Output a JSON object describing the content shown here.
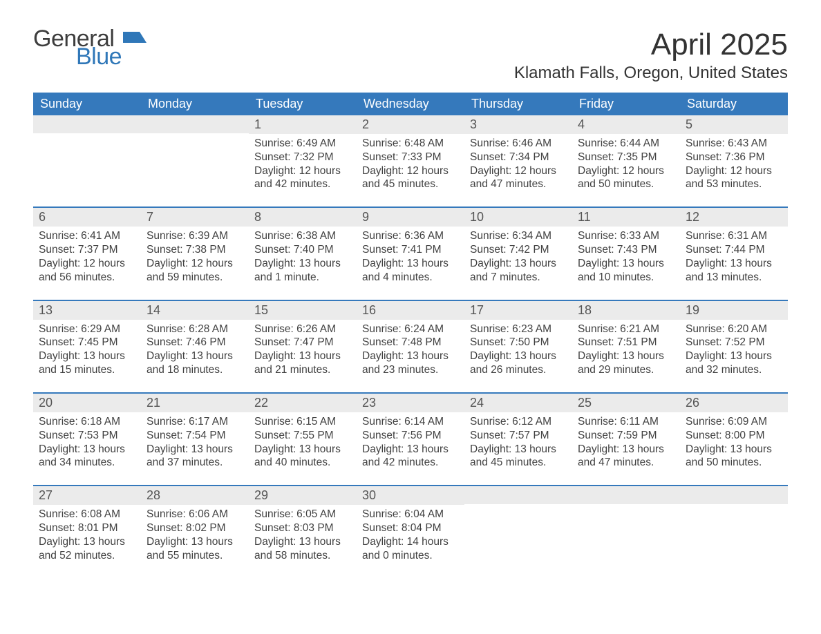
{
  "brand": {
    "line1": "General",
    "line2": "Blue",
    "mark_color": "#2f77b8"
  },
  "title": "April 2025",
  "location": "Klamath Falls, Oregon, United States",
  "colors": {
    "header_bg": "#3579bc",
    "header_text": "#ffffff",
    "daynum_bg": "#ebebeb",
    "week_border": "#3579bc",
    "body_text": "#414141",
    "page_bg": "#ffffff"
  },
  "typography": {
    "title_fontsize": 44,
    "location_fontsize": 24,
    "dow_fontsize": 18,
    "body_fontsize": 15.5
  },
  "days_of_week": [
    "Sunday",
    "Monday",
    "Tuesday",
    "Wednesday",
    "Thursday",
    "Friday",
    "Saturday"
  ],
  "weeks": [
    [
      {
        "n": "",
        "sr": "",
        "ss": "",
        "dl": ""
      },
      {
        "n": "",
        "sr": "",
        "ss": "",
        "dl": ""
      },
      {
        "n": "1",
        "sr": "6:49 AM",
        "ss": "7:32 PM",
        "dl": "12 hours and 42 minutes."
      },
      {
        "n": "2",
        "sr": "6:48 AM",
        "ss": "7:33 PM",
        "dl": "12 hours and 45 minutes."
      },
      {
        "n": "3",
        "sr": "6:46 AM",
        "ss": "7:34 PM",
        "dl": "12 hours and 47 minutes."
      },
      {
        "n": "4",
        "sr": "6:44 AM",
        "ss": "7:35 PM",
        "dl": "12 hours and 50 minutes."
      },
      {
        "n": "5",
        "sr": "6:43 AM",
        "ss": "7:36 PM",
        "dl": "12 hours and 53 minutes."
      }
    ],
    [
      {
        "n": "6",
        "sr": "6:41 AM",
        "ss": "7:37 PM",
        "dl": "12 hours and 56 minutes."
      },
      {
        "n": "7",
        "sr": "6:39 AM",
        "ss": "7:38 PM",
        "dl": "12 hours and 59 minutes."
      },
      {
        "n": "8",
        "sr": "6:38 AM",
        "ss": "7:40 PM",
        "dl": "13 hours and 1 minute."
      },
      {
        "n": "9",
        "sr": "6:36 AM",
        "ss": "7:41 PM",
        "dl": "13 hours and 4 minutes."
      },
      {
        "n": "10",
        "sr": "6:34 AM",
        "ss": "7:42 PM",
        "dl": "13 hours and 7 minutes."
      },
      {
        "n": "11",
        "sr": "6:33 AM",
        "ss": "7:43 PM",
        "dl": "13 hours and 10 minutes."
      },
      {
        "n": "12",
        "sr": "6:31 AM",
        "ss": "7:44 PM",
        "dl": "13 hours and 13 minutes."
      }
    ],
    [
      {
        "n": "13",
        "sr": "6:29 AM",
        "ss": "7:45 PM",
        "dl": "13 hours and 15 minutes."
      },
      {
        "n": "14",
        "sr": "6:28 AM",
        "ss": "7:46 PM",
        "dl": "13 hours and 18 minutes."
      },
      {
        "n": "15",
        "sr": "6:26 AM",
        "ss": "7:47 PM",
        "dl": "13 hours and 21 minutes."
      },
      {
        "n": "16",
        "sr": "6:24 AM",
        "ss": "7:48 PM",
        "dl": "13 hours and 23 minutes."
      },
      {
        "n": "17",
        "sr": "6:23 AM",
        "ss": "7:50 PM",
        "dl": "13 hours and 26 minutes."
      },
      {
        "n": "18",
        "sr": "6:21 AM",
        "ss": "7:51 PM",
        "dl": "13 hours and 29 minutes."
      },
      {
        "n": "19",
        "sr": "6:20 AM",
        "ss": "7:52 PM",
        "dl": "13 hours and 32 minutes."
      }
    ],
    [
      {
        "n": "20",
        "sr": "6:18 AM",
        "ss": "7:53 PM",
        "dl": "13 hours and 34 minutes."
      },
      {
        "n": "21",
        "sr": "6:17 AM",
        "ss": "7:54 PM",
        "dl": "13 hours and 37 minutes."
      },
      {
        "n": "22",
        "sr": "6:15 AM",
        "ss": "7:55 PM",
        "dl": "13 hours and 40 minutes."
      },
      {
        "n": "23",
        "sr": "6:14 AM",
        "ss": "7:56 PM",
        "dl": "13 hours and 42 minutes."
      },
      {
        "n": "24",
        "sr": "6:12 AM",
        "ss": "7:57 PM",
        "dl": "13 hours and 45 minutes."
      },
      {
        "n": "25",
        "sr": "6:11 AM",
        "ss": "7:59 PM",
        "dl": "13 hours and 47 minutes."
      },
      {
        "n": "26",
        "sr": "6:09 AM",
        "ss": "8:00 PM",
        "dl": "13 hours and 50 minutes."
      }
    ],
    [
      {
        "n": "27",
        "sr": "6:08 AM",
        "ss": "8:01 PM",
        "dl": "13 hours and 52 minutes."
      },
      {
        "n": "28",
        "sr": "6:06 AM",
        "ss": "8:02 PM",
        "dl": "13 hours and 55 minutes."
      },
      {
        "n": "29",
        "sr": "6:05 AM",
        "ss": "8:03 PM",
        "dl": "13 hours and 58 minutes."
      },
      {
        "n": "30",
        "sr": "6:04 AM",
        "ss": "8:04 PM",
        "dl": "14 hours and 0 minutes."
      },
      {
        "n": "",
        "sr": "",
        "ss": "",
        "dl": ""
      },
      {
        "n": "",
        "sr": "",
        "ss": "",
        "dl": ""
      },
      {
        "n": "",
        "sr": "",
        "ss": "",
        "dl": ""
      }
    ]
  ],
  "labels": {
    "sunrise": "Sunrise: ",
    "sunset": "Sunset: ",
    "daylight": "Daylight: "
  }
}
